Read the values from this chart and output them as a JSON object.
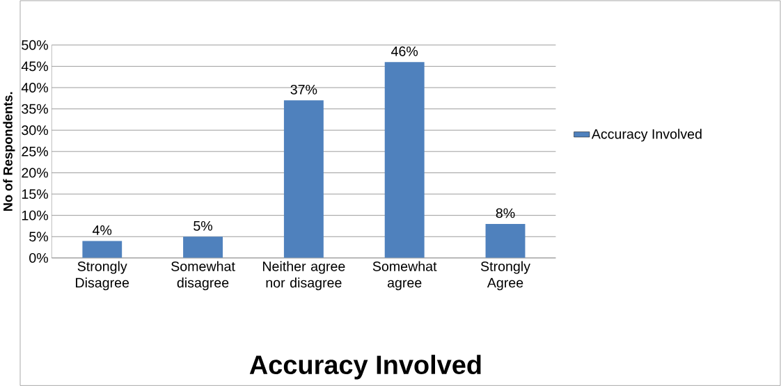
{
  "chart_data": {
    "type": "bar",
    "title": "Accuracy Involved",
    "ylabel": "No of Respondents.",
    "categories": [
      "Strongly Disagree",
      "Somewhat disagree",
      "Neither agree nor disagree",
      "Somewhat agree",
      "Strongly Agree"
    ],
    "series": [
      {
        "name": "Accuracy Involved",
        "color": "#4f81bd",
        "values": [
          4,
          5,
          37,
          46,
          8
        ],
        "value_labels": [
          "4%",
          "5%",
          "37%",
          "46%",
          "8%"
        ]
      }
    ],
    "ylim": [
      0,
      50
    ],
    "yticks": [
      {
        "value": 0,
        "label": "0%"
      },
      {
        "value": 5,
        "label": "5%"
      },
      {
        "value": 10,
        "label": "10%"
      },
      {
        "value": 15,
        "label": "15%"
      },
      {
        "value": 20,
        "label": "20%"
      },
      {
        "value": 25,
        "label": "25%"
      },
      {
        "value": 30,
        "label": "30%"
      },
      {
        "value": 35,
        "label": "35%"
      },
      {
        "value": 40,
        "label": "40%"
      },
      {
        "value": 45,
        "label": "45%"
      },
      {
        "value": 50,
        "label": "50%"
      }
    ],
    "grid": "y",
    "legend": "right"
  }
}
